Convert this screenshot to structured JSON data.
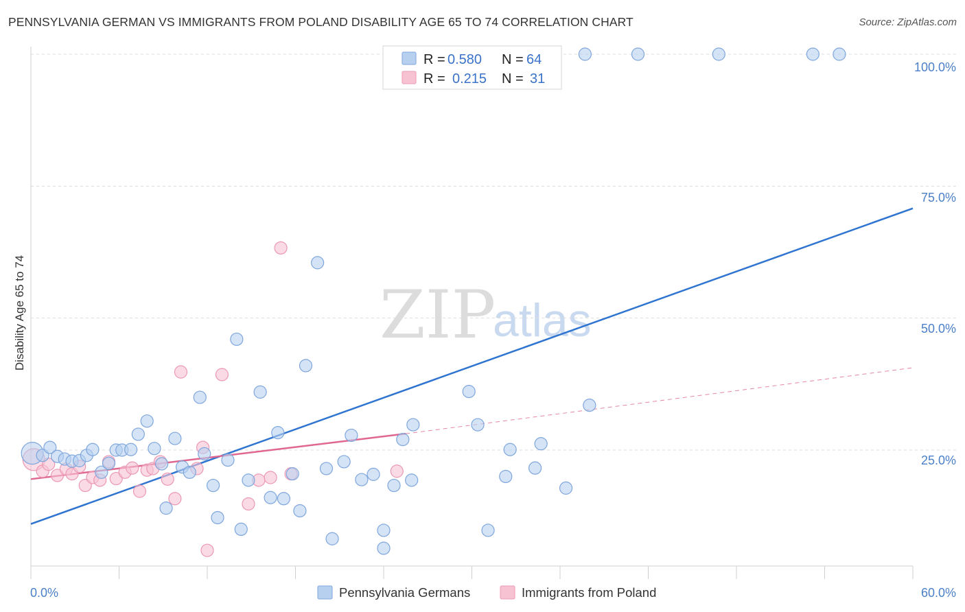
{
  "header": {
    "title": "PENNSYLVANIA GERMAN VS IMMIGRANTS FROM POLAND DISABILITY AGE 65 TO 74 CORRELATION CHART",
    "source": "Source: ZipAtlas.com"
  },
  "watermark": {
    "zip": "ZIP",
    "atlas": "atlas"
  },
  "legend_top": {
    "rows": [
      {
        "r_label": "R =",
        "r_value": "0.580",
        "n_label": "N =",
        "n_value": "64"
      },
      {
        "r_label": "R =",
        "r_value": "0.215",
        "n_label": "N =",
        "n_value": "31"
      }
    ]
  },
  "legend_bottom": {
    "items": [
      "Pennsylvania Germans",
      "Immigrants from Poland"
    ]
  },
  "colors": {
    "blue_fill": "#b8d0f0",
    "blue_stroke": "#7ea6dc",
    "blue_line": "#2f74d0",
    "pink_fill": "#f7c3d3",
    "pink_stroke": "#ec98b3",
    "pink_line": "#e0678f",
    "axis_text": "#4a7fc8"
  },
  "chart_data": {
    "type": "scatter",
    "title": "PENNSYLVANIA GERMAN VS IMMIGRANTS FROM POLAND DISABILITY AGE 65 TO 74 CORRELATION CHART",
    "xlabel": "",
    "ylabel": "Disability Age 65 to 74",
    "xlim": [
      0,
      60
    ],
    "ylim": [
      0,
      102
    ],
    "x_tick_labels": [
      "0.0%",
      "60.0%"
    ],
    "y_ticks": [
      25,
      50,
      75,
      100
    ],
    "y_tick_labels": [
      "25.0%",
      "50.0%",
      "75.0%",
      "100.0%"
    ],
    "grid": true,
    "series": [
      {
        "name": "Pennsylvania Germans",
        "r": 0.58,
        "n": 64,
        "trend": {
          "x": [
            0,
            60
          ],
          "y": [
            11,
            70.8
          ]
        },
        "points": [
          [
            0.1,
            24.4
          ],
          [
            0.8,
            24.0
          ],
          [
            1.3,
            25.5
          ],
          [
            1.8,
            23.8
          ],
          [
            2.3,
            23.3
          ],
          [
            2.8,
            22.9
          ],
          [
            3.3,
            23.0
          ],
          [
            3.8,
            24.0
          ],
          [
            4.2,
            25.1
          ],
          [
            4.8,
            20.8
          ],
          [
            5.3,
            22.5
          ],
          [
            5.8,
            25.0
          ],
          [
            6.2,
            25.0
          ],
          [
            6.8,
            25.1
          ],
          [
            7.3,
            28.0
          ],
          [
            7.9,
            30.5
          ],
          [
            8.4,
            25.3
          ],
          [
            8.9,
            22.4
          ],
          [
            9.2,
            14.0
          ],
          [
            9.8,
            27.2
          ],
          [
            10.3,
            21.8
          ],
          [
            10.8,
            20.8
          ],
          [
            11.5,
            35.0
          ],
          [
            11.8,
            24.3
          ],
          [
            12.4,
            18.3
          ],
          [
            12.7,
            12.2
          ],
          [
            13.4,
            23.1
          ],
          [
            14.0,
            46.0
          ],
          [
            14.3,
            10.0
          ],
          [
            14.8,
            19.3
          ],
          [
            15.6,
            36.0
          ],
          [
            16.3,
            16.0
          ],
          [
            16.8,
            28.3
          ],
          [
            17.2,
            15.8
          ],
          [
            17.8,
            20.5
          ],
          [
            18.3,
            13.5
          ],
          [
            18.7,
            41.0
          ],
          [
            19.5,
            60.5
          ],
          [
            20.1,
            21.5
          ],
          [
            20.5,
            8.2
          ],
          [
            21.3,
            22.8
          ],
          [
            21.8,
            27.8
          ],
          [
            22.5,
            19.4
          ],
          [
            23.3,
            20.4
          ],
          [
            24.0,
            6.4
          ],
          [
            24.0,
            9.8
          ],
          [
            24.7,
            18.3
          ],
          [
            25.3,
            27.0
          ],
          [
            25.9,
            19.3
          ],
          [
            26.0,
            29.8
          ],
          [
            29.8,
            36.1
          ],
          [
            30.4,
            29.8
          ],
          [
            31.1,
            9.8
          ],
          [
            32.3,
            20.0
          ],
          [
            32.6,
            25.1
          ],
          [
            34.3,
            21.6
          ],
          [
            34.7,
            26.2
          ],
          [
            36.4,
            17.8
          ],
          [
            37.7,
            100
          ],
          [
            38.0,
            33.5
          ],
          [
            41.3,
            100
          ],
          [
            46.8,
            100
          ],
          [
            53.2,
            100
          ],
          [
            55.0,
            100
          ]
        ]
      },
      {
        "name": "Immigrants from Poland",
        "r": 0.215,
        "n": 31,
        "trend": {
          "x": [
            0,
            25.5
          ],
          "y": [
            19.5,
            28.1
          ]
        },
        "trend_dashed": {
          "x": [
            25.5,
            60
          ],
          "y": [
            28.1,
            40.6
          ]
        },
        "points": [
          [
            0.2,
            23.2
          ],
          [
            0.8,
            21.0
          ],
          [
            1.2,
            22.3
          ],
          [
            1.8,
            20.2
          ],
          [
            2.4,
            21.4
          ],
          [
            2.8,
            20.5
          ],
          [
            3.3,
            21.9
          ],
          [
            3.7,
            18.3
          ],
          [
            4.2,
            19.8
          ],
          [
            4.7,
            19.3
          ],
          [
            5.3,
            22.8
          ],
          [
            5.8,
            19.6
          ],
          [
            6.4,
            20.8
          ],
          [
            6.9,
            21.6
          ],
          [
            7.4,
            17.2
          ],
          [
            7.9,
            21.2
          ],
          [
            8.3,
            21.5
          ],
          [
            8.8,
            22.8
          ],
          [
            9.3,
            19.5
          ],
          [
            9.8,
            15.8
          ],
          [
            10.2,
            39.8
          ],
          [
            11.3,
            21.5
          ],
          [
            11.7,
            25.5
          ],
          [
            12.0,
            6.0
          ],
          [
            13.0,
            39.3
          ],
          [
            14.8,
            14.8
          ],
          [
            15.5,
            19.3
          ],
          [
            16.3,
            19.8
          ],
          [
            17.0,
            63.3
          ],
          [
            17.7,
            20.5
          ],
          [
            24.9,
            21.0
          ]
        ]
      }
    ]
  }
}
